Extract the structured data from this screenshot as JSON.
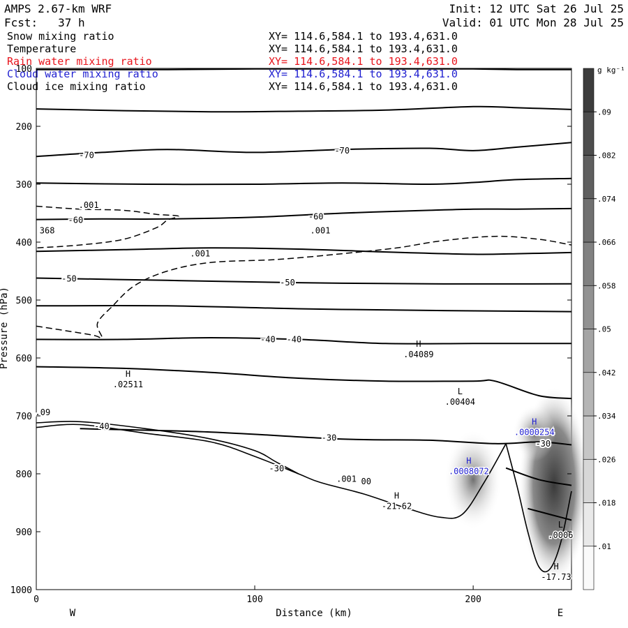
{
  "header": {
    "model": "AMPS 2.67-km WRF",
    "fcst": "Fcst:   37 h",
    "init": "Init: 12 UTC Sat 26 Jul 25",
    "valid": "Valid: 01 UTC Mon 28 Jul 25"
  },
  "fields": [
    {
      "name": "Snow mixing ratio",
      "xy": "XY= 114.6,584.1 to 193.4,631.0",
      "color": "#000000"
    },
    {
      "name": "Temperature",
      "xy": "XY= 114.6,584.1 to 193.4,631.0",
      "color": "#000000"
    },
    {
      "name": "Rain water mixing ratio",
      "xy": "XY= 114.6,584.1 to 193.4,631.0",
      "color": "#e8141c"
    },
    {
      "name": "Cloud water mixing ratio",
      "xy": "XY= 114.6,584.1 to 193.4,631.0",
      "color": "#1f1fd0"
    },
    {
      "name": "Cloud ice mixing ratio",
      "xy": "XY= 114.6,584.1 to 193.4,631.0",
      "color": "#000000"
    }
  ],
  "chart_data": {
    "type": "contour-cross-section",
    "xlabel": "Distance (km)",
    "ylabel": "Pressure (hPa)",
    "xlim": [
      0,
      245
    ],
    "ylim": [
      1000,
      100
    ],
    "xticks": [
      0,
      100,
      200
    ],
    "yticks": [
      100,
      200,
      300,
      400,
      500,
      600,
      700,
      800,
      900,
      1000
    ],
    "direction_left": "W",
    "direction_right": "E",
    "colorbar": {
      "units": "g kg⁻¹",
      "levels": [
        ".01",
        ".018",
        ".026",
        ".034",
        ".042",
        ".05",
        ".058",
        ".066",
        ".074",
        ".082",
        ".09"
      ]
    },
    "temperature_isotherms": [
      {
        "x": [
          0,
          30,
          60,
          100,
          140,
          180,
          200,
          220,
          245
        ],
        "p": [
          102,
          102,
          102,
          101,
          101,
          101,
          101,
          102,
          102
        ]
      },
      {
        "x": [
          0,
          40,
          80,
          120,
          160,
          200,
          220,
          245
        ],
        "p": [
          170,
          173,
          175,
          174,
          172,
          166,
          168,
          171
        ]
      },
      {
        "label": "-70",
        "x": [
          0,
          30,
          60,
          100,
          140,
          180,
          200,
          220,
          245
        ],
        "p": [
          252,
          245,
          240,
          245,
          240,
          238,
          242,
          236,
          228
        ]
      },
      {
        "x": [
          0,
          50,
          100,
          140,
          180,
          200,
          220,
          245
        ],
        "p": [
          298,
          300,
          300,
          298,
          300,
          297,
          292,
          290
        ]
      },
      {
        "label": "-60",
        "x": [
          0,
          30,
          60,
          100,
          140,
          180,
          200,
          220,
          245
        ],
        "p": [
          361,
          360,
          360,
          357,
          350,
          345,
          343,
          343,
          342
        ]
      },
      {
        "x": [
          0,
          40,
          80,
          120,
          160,
          200,
          220,
          245
        ],
        "p": [
          416,
          413,
          410,
          412,
          417,
          421,
          420,
          418
        ]
      },
      {
        "label": "-50",
        "x": [
          0,
          60,
          120,
          180,
          245
        ],
        "p": [
          462,
          466,
          470,
          472,
          472
        ]
      },
      {
        "x": [
          0,
          60,
          120,
          180,
          245
        ],
        "p": [
          510,
          510,
          515,
          518,
          520
        ]
      },
      {
        "label": "-40",
        "x": [
          0,
          40,
          80,
          120,
          160,
          200,
          220,
          245
        ],
        "p": [
          568,
          568,
          565,
          568,
          575,
          575,
          575,
          575
        ]
      },
      {
        "x": [
          0,
          40,
          80,
          120,
          160,
          200,
          210,
          230,
          245
        ],
        "p": [
          615,
          618,
          625,
          635,
          640,
          640,
          640,
          665,
          670
        ]
      },
      {
        "label": "-30",
        "x": [
          20,
          80,
          140,
          180,
          210,
          230,
          245
        ],
        "p": [
          722,
          728,
          740,
          742,
          748,
          745,
          750
        ]
      },
      {
        "x": [
          215,
          230,
          245
        ],
        "p": [
          790,
          810,
          820
        ]
      },
      {
        "x": [
          225,
          235,
          245
        ],
        "p": [
          860,
          870,
          880
        ]
      }
    ],
    "terrain_contours": [
      {
        "x": [
          0,
          20,
          50,
          80,
          100,
          120,
          130,
          150,
          170,
          185,
          195,
          205,
          215
        ],
        "p": [
          720,
          715,
          730,
          745,
          770,
          800,
          815,
          835,
          860,
          875,
          870,
          815,
          748
        ]
      },
      {
        "x": [
          0,
          20,
          50,
          80,
          100,
          110,
          120
        ],
        "p": [
          712,
          710,
          722,
          740,
          760,
          780,
          800
        ]
      },
      {
        "x": [
          215,
          220,
          225,
          230,
          235,
          240,
          245
        ],
        "p": [
          748,
          820,
          900,
          960,
          965,
          920,
          830
        ]
      }
    ],
    "labels": [
      {
        "text": "-70",
        "x": 23,
        "p": 250
      },
      {
        "text": "-70",
        "x": 140,
        "p": 242
      },
      {
        "text": "-60",
        "x": 18,
        "p": 362
      },
      {
        "text": "-60",
        "x": 128,
        "p": 356
      },
      {
        "text": "-50",
        "x": 15,
        "p": 463
      },
      {
        "text": "-50",
        "x": 115,
        "p": 470
      },
      {
        "text": "-40",
        "x": 106,
        "p": 568
      },
      {
        "text": "-40",
        "x": 118,
        "p": 568
      },
      {
        "text": "-40",
        "x": 30,
        "p": 718
      },
      {
        "text": "-30",
        "x": 134,
        "p": 738
      },
      {
        "text": "-30",
        "x": 110,
        "p": 791
      },
      {
        "text": "-30",
        "x": 232,
        "p": 748
      },
      {
        "text": ".001",
        "x": 24,
        "p": 336
      },
      {
        "text": ".001",
        "x": 75,
        "p": 420
      },
      {
        "text": ".001",
        "x": 130,
        "p": 380
      },
      {
        "text": "368",
        "x": 5,
        "p": 380
      },
      {
        "text": ".09",
        "x": 3,
        "p": 694
      },
      {
        "text": ".001",
        "x": 142,
        "p": 809
      },
      {
        "text": "00",
        "x": 151,
        "p": 813
      }
    ],
    "extrema": [
      {
        "kind": "H",
        "value": ".02511",
        "x": 42,
        "p": 640,
        "color": "#000000"
      },
      {
        "kind": "H",
        "value": ".04089",
        "x": 175,
        "p": 588,
        "color": "#000000"
      },
      {
        "kind": "L",
        "value": ".00404",
        "x": 194,
        "p": 670,
        "color": "#000000"
      },
      {
        "kind": "H",
        "value": ".0000254",
        "x": 228,
        "p": 722,
        "color": "#1f1fd0"
      },
      {
        "kind": "H",
        "value": ".0008072",
        "x": 198,
        "p": 790,
        "color": "#1f1fd0"
      },
      {
        "kind": "H",
        "value": "-21.62",
        "x": 165,
        "p": 850,
        "color": "#000000"
      },
      {
        "kind": "L",
        "value": ".0006",
        "x": 240,
        "p": 900,
        "color": "#000000"
      },
      {
        "kind": "H",
        "value": "-17.73",
        "x": 238,
        "p": 972,
        "color": "#000000"
      }
    ],
    "snow_contour_dashed": {
      "label": ".001"
    }
  }
}
